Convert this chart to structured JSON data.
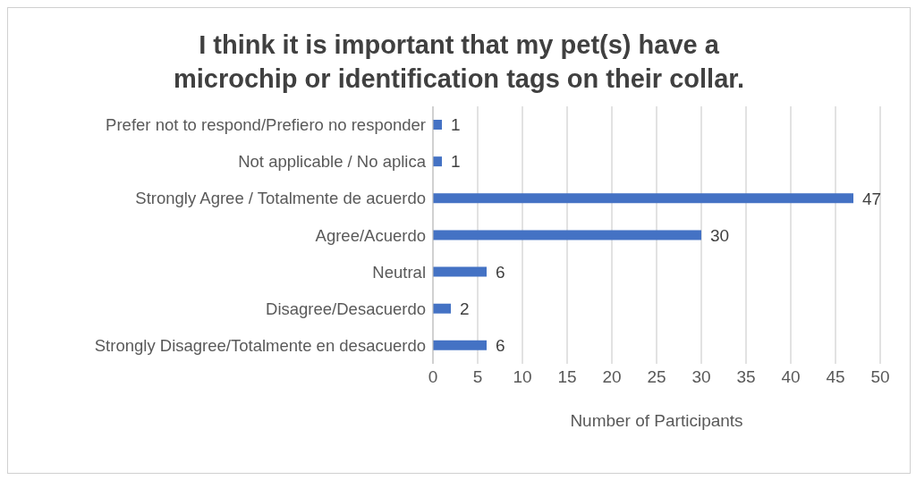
{
  "chart_data": {
    "type": "bar",
    "orientation": "horizontal",
    "title": "I think it is important that my pet(s) have a microchip or identification tags on their collar.",
    "xlabel": "Number of Participants",
    "categories": [
      "Prefer not to respond/Prefiero no responder",
      "Not applicable / No aplica",
      "Strongly Agree / Totalmente de acuerdo",
      "Agree/Acuerdo",
      "Neutral",
      "Disagree/Desacuerdo",
      "Strongly Disagree/Totalmente en desacuerdo"
    ],
    "values": [
      1,
      1,
      47,
      30,
      6,
      2,
      6
    ],
    "color": "#4472c4",
    "xlim": [
      0,
      50
    ],
    "xticks": [
      0,
      5,
      10,
      15,
      20,
      25,
      30,
      35,
      40,
      45,
      50
    ],
    "grid": "x",
    "data_labels": true
  }
}
